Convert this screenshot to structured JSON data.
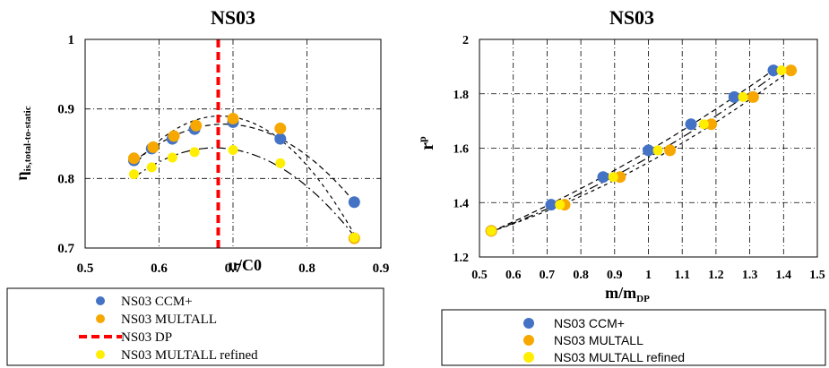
{
  "chart_data": [
    {
      "type": "scatter",
      "title": "NS03",
      "xlabel": "u/C0",
      "ylabel": "η",
      "ylabel_subscript": "is,total-to-static",
      "xlim": [
        0.5,
        0.9
      ],
      "ylim": [
        0.7,
        1.0
      ],
      "x_ticks": [
        "0.5",
        "0.6",
        "0.7",
        "0.8",
        "0.9"
      ],
      "y_ticks": [
        "0.7",
        "0.8",
        "0.9",
        "1"
      ],
      "grid": true,
      "legend_position": "bottom",
      "design_point_x": 0.68,
      "series": [
        {
          "name": "NS03 CCM+",
          "color": "#4472c4",
          "x": [
            0.566,
            0.59,
            0.618,
            0.648,
            0.7,
            0.764,
            0.864
          ],
          "y": [
            0.826,
            0.843,
            0.857,
            0.871,
            0.881,
            0.857,
            0.766
          ]
        },
        {
          "name": "NS03 MULTALL",
          "color": "#f7a800",
          "x": [
            0.566,
            0.592,
            0.62,
            0.65,
            0.7,
            0.764,
            0.864
          ],
          "y": [
            0.829,
            0.845,
            0.861,
            0.876,
            0.886,
            0.872,
            0.714
          ]
        },
        {
          "name": "NS03 MULTALL refined",
          "color": "#ffee00",
          "x": [
            0.566,
            0.59,
            0.618,
            0.648,
            0.7,
            0.764,
            0.864
          ],
          "y": [
            0.806,
            0.816,
            0.83,
            0.838,
            0.841,
            0.822,
            0.715
          ]
        }
      ],
      "dp_series_name": "NS03 DP",
      "dp_color": "#ff0000"
    },
    {
      "type": "scatter",
      "title": "NS03",
      "xlabel": "m/m",
      "xlabel_subscript": "DP",
      "ylabel": "r",
      "ylabel_subscript": "p",
      "xlim": [
        0.5,
        1.5
      ],
      "ylim": [
        1.2,
        2.0
      ],
      "x_ticks": [
        "0.5",
        "0.6",
        "0.7",
        "0.8",
        "0.9",
        "1",
        "1.1",
        "1.2",
        "1.3",
        "1.4",
        "1.5"
      ],
      "y_ticks": [
        "1.2",
        "1.4",
        "1.6",
        "1.8",
        "2"
      ],
      "grid": true,
      "legend_position": "bottom",
      "series": [
        {
          "name": "NS03 CCM+",
          "color": "#4472c4",
          "x": [
            0.535,
            0.712,
            0.866,
            1.0,
            1.126,
            1.254,
            1.37
          ],
          "y": [
            1.296,
            1.392,
            1.494,
            1.592,
            1.688,
            1.788,
            1.886
          ]
        },
        {
          "name": "NS03 MULTALL",
          "color": "#f7a800",
          "x": [
            0.535,
            0.752,
            0.916,
            1.064,
            1.186,
            1.31,
            1.422
          ],
          "y": [
            1.296,
            1.392,
            1.494,
            1.592,
            1.688,
            1.788,
            1.886
          ]
        },
        {
          "name": "NS03 MULTALL refined",
          "color": "#ffee00",
          "x": [
            0.535,
            0.738,
            0.896,
            1.028,
            1.164,
            1.28,
            1.394
          ],
          "y": [
            1.296,
            1.392,
            1.494,
            1.592,
            1.688,
            1.788,
            1.886
          ]
        }
      ]
    }
  ]
}
